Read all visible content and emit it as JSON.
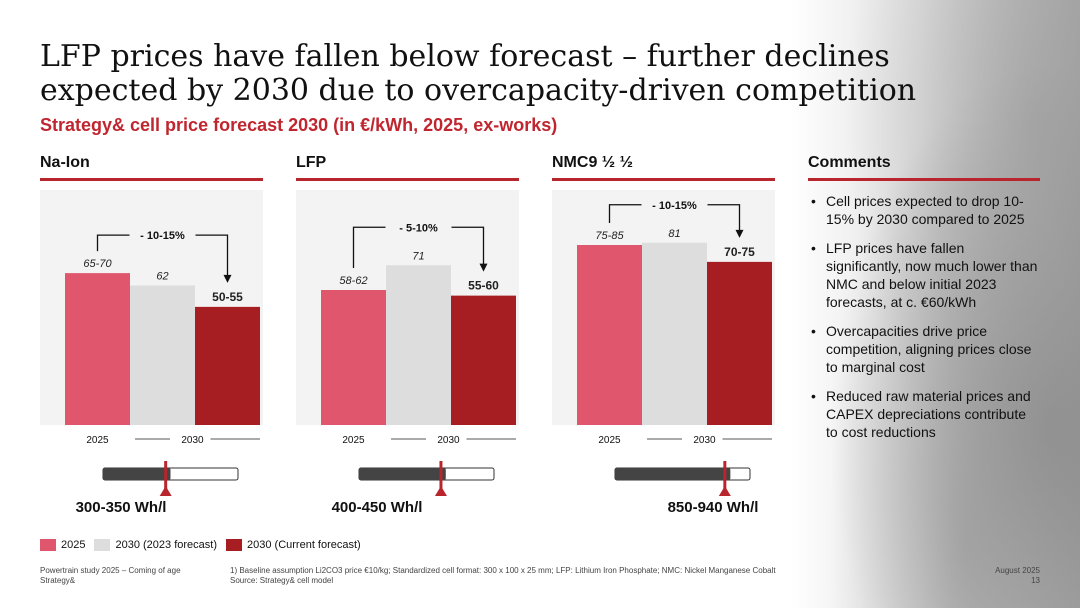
{
  "title": "LFP prices have fallen below forecast – further declines expected by 2030 due to overcapacity-driven competition",
  "subtitle": "Strategy& cell price forecast 2030 (in €/kWh, 2025, ex-works)",
  "comments_head": "Comments",
  "comments": [
    "Cell prices expected to drop 10-15% by 2030 compared to 2025",
    "LFP prices have fallen significantly, now much lower than NMC and below initial 2023 forecasts, at c. €60/kWh",
    "Overcapacities drive price competition, aligning prices close to marginal cost",
    "Reduced raw material prices and CAPEX depreciations contribute to cost reductions"
  ],
  "colors": {
    "c2025": "#e0566c",
    "c2023": "#dddddd",
    "current": "#a61e22",
    "accent": "#c0262f"
  },
  "chart_data": [
    {
      "type": "bar",
      "title": "Na-Ion",
      "categories": [
        "2025",
        "2030 (2023 forecast)",
        "2030 (Current forecast)"
      ],
      "values": [
        67.5,
        62,
        52.5
      ],
      "labels": [
        "65-70",
        "62",
        "50-55"
      ],
      "arrow_label": "- 10-15%",
      "energy_density": "300-350 Wh/l",
      "density_range": [
        300,
        350
      ]
    },
    {
      "type": "bar",
      "title": "LFP",
      "categories": [
        "2025",
        "2030 (2023 forecast)",
        "2030 (Current forecast)"
      ],
      "values": [
        60,
        71,
        57.5
      ],
      "labels": [
        "58-62",
        "71",
        "55-60"
      ],
      "arrow_label": "- 5-10%",
      "energy_density": "400-450 Wh/l",
      "density_range": [
        400,
        450
      ]
    },
    {
      "type": "bar",
      "title": "NMC9 ½ ½",
      "categories": [
        "2025",
        "2030 (2023 forecast)",
        "2030 (Current forecast)"
      ],
      "values": [
        80,
        81,
        72.5
      ],
      "labels": [
        "75-85",
        "81",
        "70-75"
      ],
      "arrow_label": "- 10-15%",
      "energy_density": "850-940 Wh/l",
      "density_range": [
        850,
        940
      ]
    }
  ],
  "axis": {
    "year_2025": "2025",
    "year_2030": "2030"
  },
  "legend": {
    "l2025": "2025",
    "l2023": "2030 (2023 forecast)",
    "lcurrent": "2030 (Current forecast)"
  },
  "footer": {
    "left1": "Powertrain study 2025 – Coming of age",
    "left2": "Strategy&",
    "note1": "1) Baseline assumption Li2CO3 price €10/kg; Standardized cell format: 300 x 100 x 25 mm; LFP: Lithium Iron Phosphate; NMC: Nickel Manganese Cobalt",
    "note2": "Source: Strategy& cell model",
    "date": "August 2025",
    "page": "13"
  }
}
